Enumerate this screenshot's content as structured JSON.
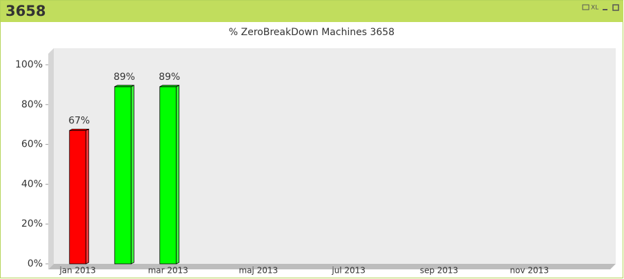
{
  "header": {
    "title": "3658",
    "export_label": "XL"
  },
  "chart_data": {
    "type": "bar",
    "title": "% ZeroBreakDown Machines 3658",
    "categories": [
      "jan 2013",
      null,
      "mar 2013",
      null,
      "maj 2013",
      null,
      "jul 2013",
      null,
      "sep 2013",
      null,
      "nov 2013",
      null
    ],
    "values": [
      67,
      89,
      89,
      null,
      null,
      null,
      null,
      null,
      null,
      null,
      null,
      null
    ],
    "value_labels": [
      "67%",
      "89%",
      "89%",
      null,
      null,
      null,
      null,
      null,
      null,
      null,
      null,
      null
    ],
    "colors": [
      "#ff0000",
      "#00ff00",
      "#00ff00",
      null,
      null,
      null,
      null,
      null,
      null,
      null,
      null,
      null
    ],
    "ylim": [
      0,
      100
    ],
    "yticks": [
      {
        "value": 0,
        "label": "0%"
      },
      {
        "value": 20,
        "label": "20%"
      },
      {
        "value": 40,
        "label": "40%"
      },
      {
        "value": 60,
        "label": "60%"
      },
      {
        "value": 80,
        "label": "80%"
      },
      {
        "value": 100,
        "label": "100%"
      }
    ],
    "grid": false
  }
}
